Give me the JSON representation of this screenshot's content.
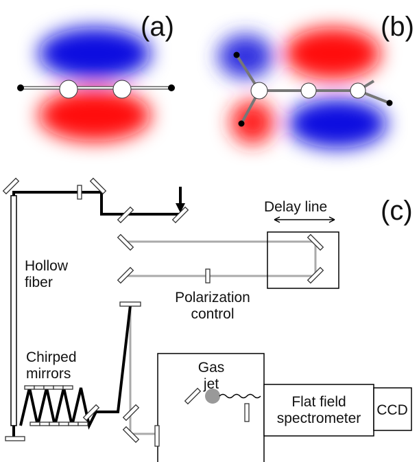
{
  "panels": {
    "a": "(a)",
    "b": "(b)",
    "c": "(c)"
  },
  "labels": {
    "delay_line": "Delay line",
    "hollow_fiber": [
      "Hollow",
      "fiber"
    ],
    "chirped_mirrors": [
      "Chirped",
      "mirrors"
    ],
    "polarization_control": [
      "Polarization",
      "control"
    ],
    "gas_jet": [
      "Gas",
      "jet"
    ],
    "spectrometer": [
      "Flat field",
      "spectrometer"
    ],
    "ccd": "CCD"
  }
}
